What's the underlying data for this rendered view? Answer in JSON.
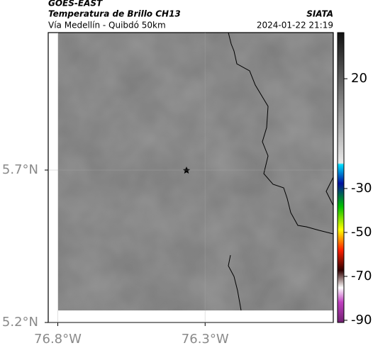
{
  "header": {
    "source": "GOES-EAST",
    "title": "Temperatura de Brillo CH13",
    "brand": "SIATA",
    "subtitle": "Vía Medellín - Quibdó 50km",
    "datetime": "2024-01-22 21:19"
  },
  "map": {
    "xlim": [
      -76.8325,
      -75.865
    ],
    "ylim": [
      5.2,
      6.151
    ],
    "xticks": [
      {
        "value": -76.8,
        "label": "76.8°W"
      },
      {
        "value": -76.3,
        "label": "76.3°W"
      }
    ],
    "yticks": [
      {
        "value": 5.2,
        "label": "5.2°N"
      },
      {
        "value": 5.7,
        "label": "5.7°N"
      }
    ]
  },
  "colorbar": {
    "lim": [
      -91,
      41
    ],
    "ticks": [
      20,
      -30,
      -50,
      -70,
      -90
    ]
  }
}
